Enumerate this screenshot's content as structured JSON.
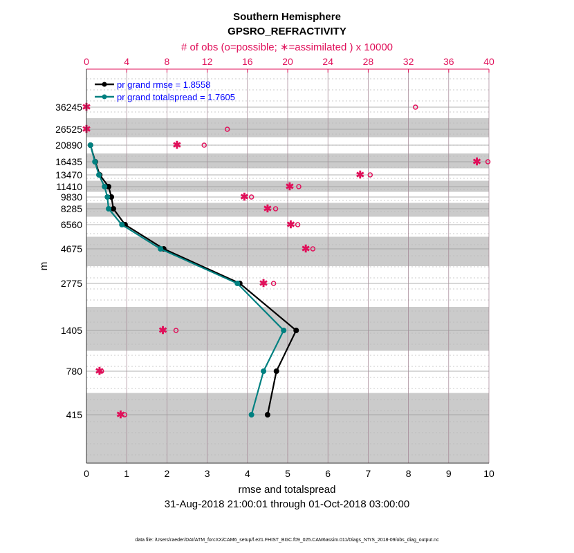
{
  "chart_data": {
    "type": "line",
    "title": "Southern Hemisphere",
    "subtitle": "GPSRO_REFRACTIVITY",
    "xlabel": "rmse and totalspread",
    "xlabel2": "31-Aug-2018 21:00:01 through 01-Oct-2018 03:00:00",
    "ylabel": "m",
    "top_xlabel": "# of obs (o=possible; ∗=assimilated ) x 10000",
    "xlim": [
      0,
      10
    ],
    "top_xlim": [
      0,
      40
    ],
    "xticks": [
      "0",
      "1",
      "2",
      "3",
      "4",
      "5",
      "6",
      "7",
      "8",
      "9",
      "10"
    ],
    "top_xticks": [
      "0",
      "4",
      "8",
      "12",
      "16",
      "20",
      "24",
      "28",
      "32",
      "36",
      "40"
    ],
    "levels": [
      36245,
      26525,
      20890,
      16435,
      13470,
      11410,
      9830,
      8285,
      6560,
      4675,
      2775,
      1405,
      780,
      415
    ],
    "series": [
      {
        "name": "pr grand rmse = 1.8558",
        "color": "#000000",
        "levels": [
          20890,
          16435,
          13470,
          11410,
          9830,
          8285,
          6560,
          4675,
          2775,
          1405,
          780,
          415
        ],
        "values": [
          0.1,
          0.22,
          0.33,
          0.55,
          0.62,
          0.67,
          0.96,
          1.92,
          3.81,
          5.21,
          4.72,
          4.5
        ]
      },
      {
        "name": "pr grand totalspread = 1.7605",
        "color": "#008080",
        "levels": [
          20890,
          16435,
          13470,
          11410,
          9830,
          8285,
          6560,
          4675,
          2775,
          1405,
          780,
          415
        ],
        "values": [
          0.1,
          0.21,
          0.31,
          0.45,
          0.52,
          0.55,
          0.88,
          1.84,
          3.75,
          4.9,
          4.4,
          4.1
        ]
      }
    ],
    "obs_possible": {
      "color": "#e0105a",
      "levels": [
        36245,
        26525,
        20890,
        16435,
        13470,
        11410,
        9830,
        8285,
        6560,
        4675,
        2775,
        1405,
        780,
        415
      ],
      "values": [
        32.7,
        14.0,
        11.7,
        39.9,
        28.2,
        21.1,
        16.4,
        18.8,
        21.0,
        22.5,
        18.6,
        8.9,
        1.5,
        3.8
      ]
    },
    "obs_assimilated": {
      "color": "#e0105a",
      "levels": [
        36245,
        26525,
        20890,
        16435,
        13470,
        11410,
        9830,
        8285,
        6560,
        4675,
        2775,
        1405,
        780,
        415
      ],
      "values": [
        0,
        0,
        9.0,
        38.8,
        27.2,
        20.2,
        15.7,
        18.0,
        20.3,
        21.8,
        17.6,
        7.6,
        1.3,
        3.4
      ]
    },
    "legend_placement": "top-left",
    "grid": true,
    "legend_color": "#0000ff"
  },
  "footer": "data file: /Users/raeder/DAI/ATM_forcXX/CAM6_setup/f.e21.FHIST_BGC.f09_025.CAM6assim.011/Diags_NTrS_2018-09/obs_diag_output.nc"
}
